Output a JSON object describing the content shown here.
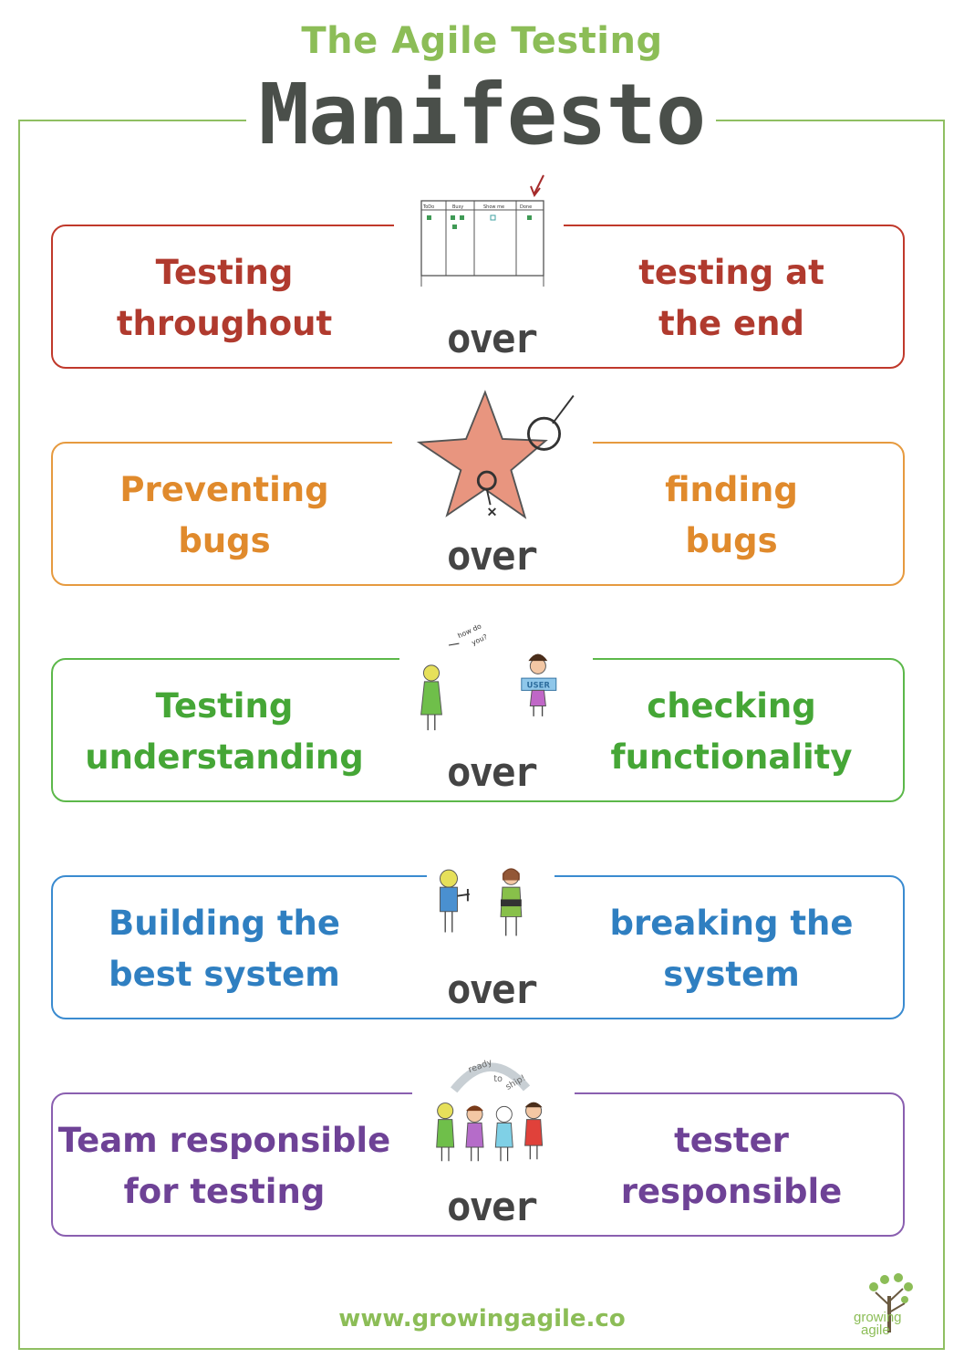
{
  "header": {
    "subtitle": "The Agile Testing",
    "title": "Manifesto"
  },
  "rows": [
    {
      "left": [
        "Testing",
        "throughout"
      ],
      "over": "over",
      "right": [
        "testing at",
        "the end"
      ],
      "color": "#c0392b",
      "illustration": "kanban-board-icon"
    },
    {
      "left": [
        "Preventing",
        "bugs"
      ],
      "over": "over",
      "right": [
        "finding",
        "bugs"
      ],
      "color": "#e08a2c",
      "illustration": "star-bug-icon"
    },
    {
      "left": [
        "Testing",
        "understanding"
      ],
      "over": "over",
      "right": [
        "checking",
        "functionality"
      ],
      "color": "#4caf3a",
      "illustration": "user-conversation-icon",
      "illustration_text": [
        "how do",
        "you?",
        "USER"
      ]
    },
    {
      "left": [
        "Building the",
        "best system"
      ],
      "over": "over",
      "right": [
        "breaking the",
        "system"
      ],
      "color": "#2f7fc1",
      "illustration": "builder-breaker-icon"
    },
    {
      "left": [
        "Team responsible",
        "for testing"
      ],
      "over": "over",
      "right": [
        "tester",
        "responsible"
      ],
      "color": "#7b4fa3",
      "illustration": "team-icon",
      "illustration_text": [
        "ready",
        "to",
        "ship!"
      ]
    }
  ],
  "board": {
    "columns": [
      "ToDo",
      "Busy",
      "Show me",
      "Done"
    ]
  },
  "footer": {
    "url": "www.growingagile.co",
    "logo": {
      "line1": "growing",
      "line2": "agile"
    }
  },
  "colors": {
    "frame": "#8fbf62",
    "title": "#4a4f4a",
    "accent": "#8cbd57"
  }
}
